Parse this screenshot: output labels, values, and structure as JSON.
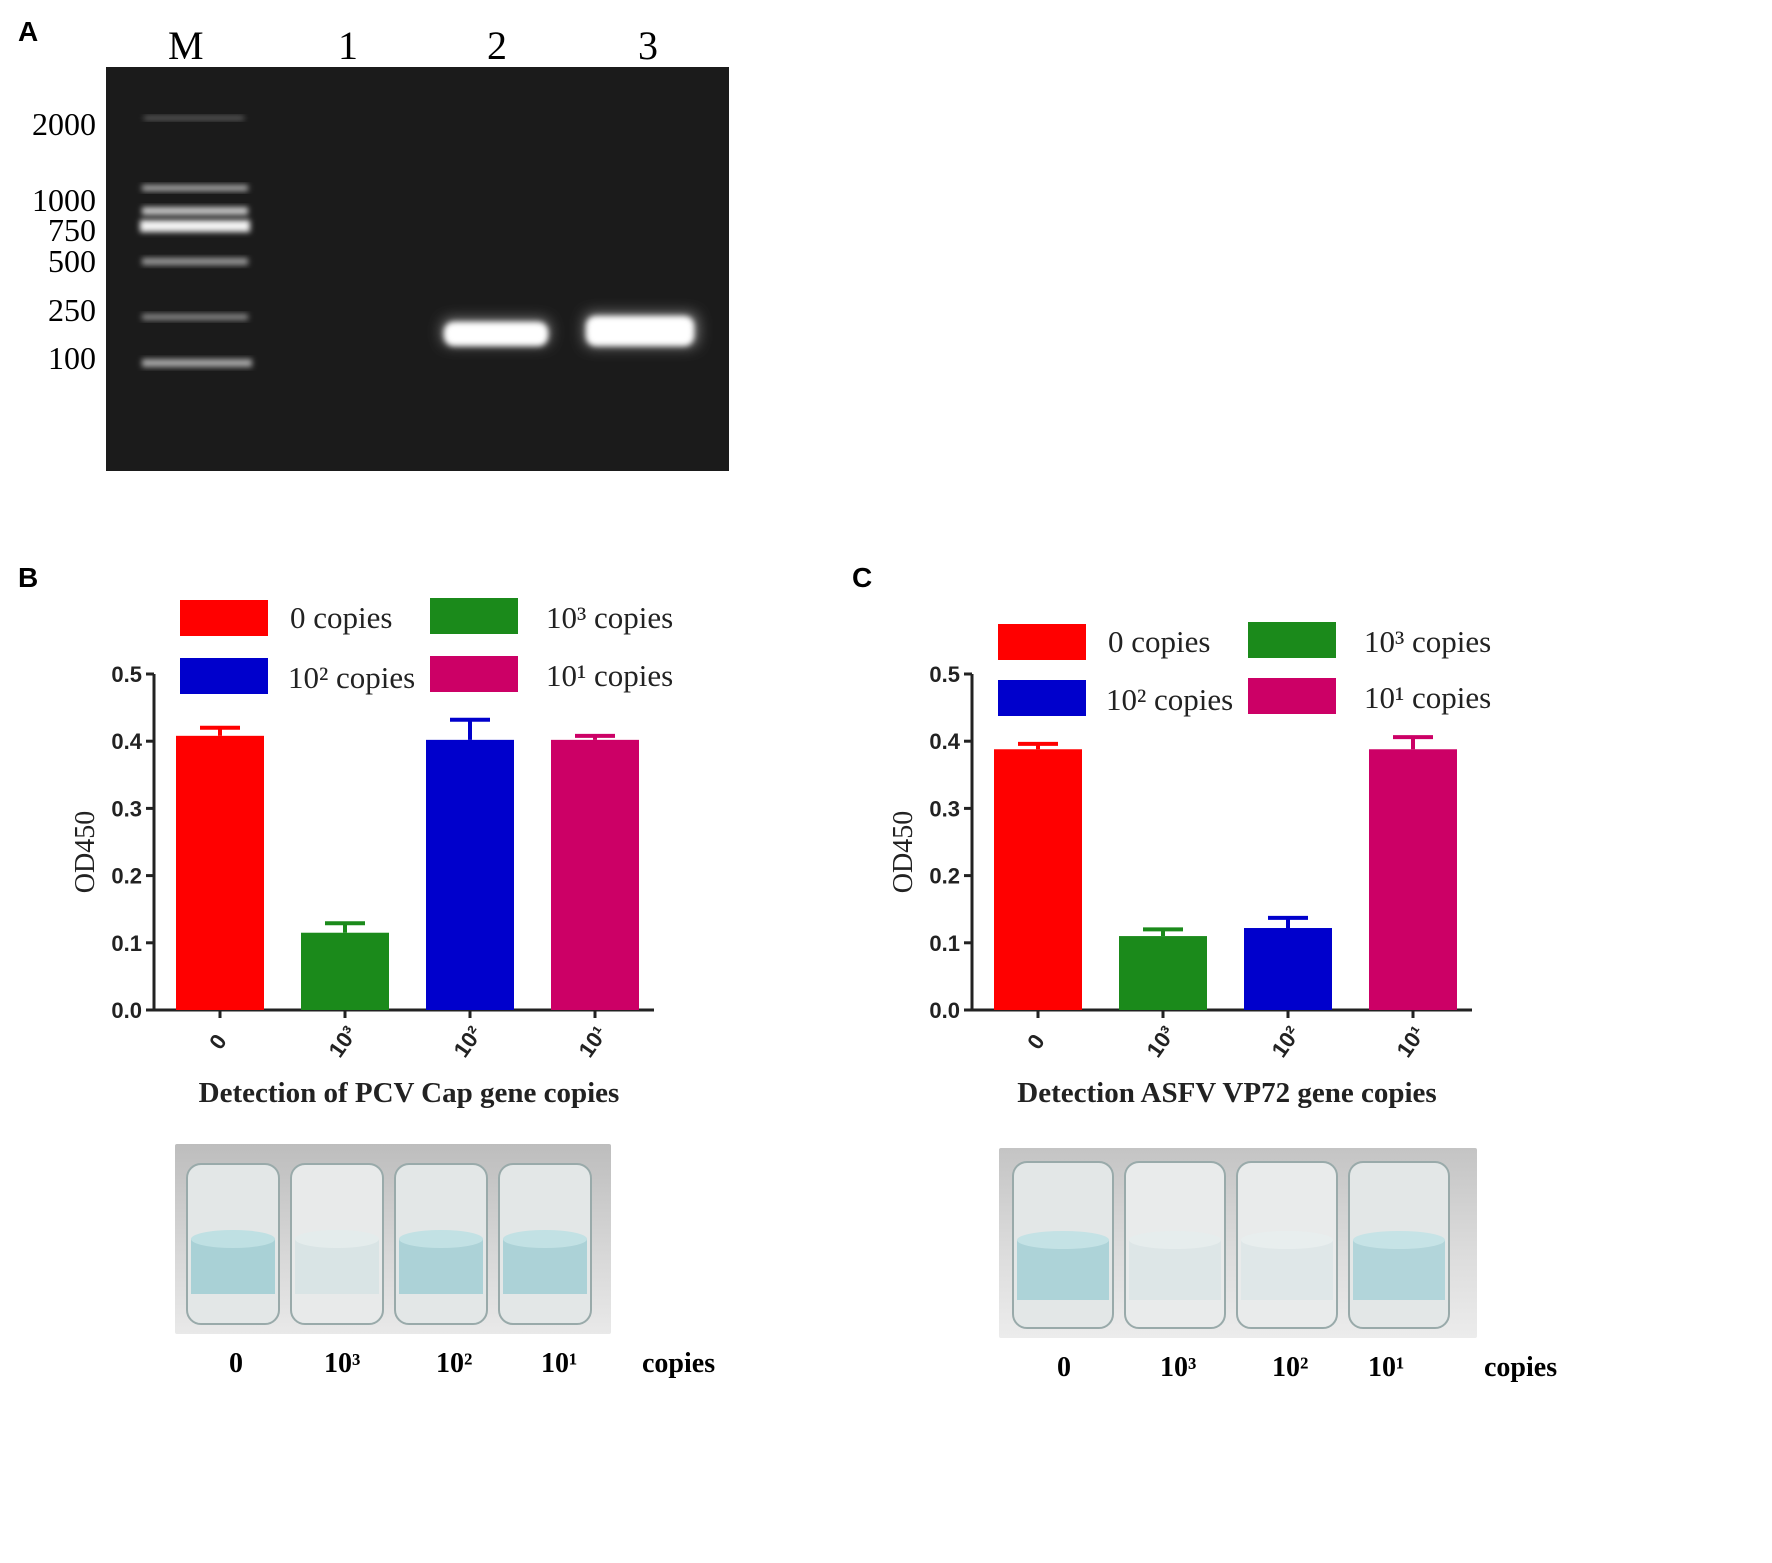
{
  "panel_a": {
    "letter": "A",
    "lanes": [
      "M",
      "1",
      "2",
      "3"
    ],
    "marker_sizes": [
      "2000",
      "1000",
      "750",
      "500",
      "250",
      "100"
    ],
    "colors": {
      "gel_bg": "#1b1b1b",
      "band": "#ffffff"
    }
  },
  "panel_b": {
    "letter": "B",
    "caption_row": {
      "labels": [
        "0",
        "10³",
        "10²",
        "10¹"
      ],
      "unit": "copies"
    }
  },
  "panel_c": {
    "letter": "C",
    "caption_row": {
      "labels": [
        "0",
        "10³",
        "10²",
        "10¹"
      ],
      "unit": "copies"
    }
  },
  "chart_data": [
    {
      "type": "bar",
      "title": "",
      "xlabel": "Detection of PCV Cap gene copies",
      "ylabel": "OD450",
      "ylim": [
        0,
        0.5
      ],
      "yticks": [
        "0.0",
        "0.1",
        "0.2",
        "0.3",
        "0.4",
        "0.5"
      ],
      "categories": [
        "0",
        "10³",
        "10²",
        "10¹"
      ],
      "values": [
        0.408,
        0.115,
        0.402,
        0.402
      ],
      "errors": [
        0.012,
        0.014,
        0.03,
        0.006
      ],
      "colors": [
        "#ff0000",
        "#1b8a1b",
        "#0000cc",
        "#cc0066"
      ],
      "legend": {
        "placement": "top",
        "entries": [
          {
            "label": "0 copies",
            "color": "#ff0000"
          },
          {
            "label": "10³ copies",
            "color": "#1b8a1b"
          },
          {
            "label": "10² copies",
            "color": "#0000cc"
          },
          {
            "label": "10¹ copies",
            "color": "#cc0066"
          }
        ]
      }
    },
    {
      "type": "bar",
      "title": "",
      "xlabel": "Detection ASFV VP72 gene copies",
      "ylabel": "OD450",
      "ylim": [
        0,
        0.5
      ],
      "yticks": [
        "0.0",
        "0.1",
        "0.2",
        "0.3",
        "0.4",
        "0.5"
      ],
      "categories": [
        "0",
        "10³",
        "10²",
        "10¹"
      ],
      "values": [
        0.388,
        0.11,
        0.122,
        0.388
      ],
      "errors": [
        0.008,
        0.01,
        0.015,
        0.018
      ],
      "colors": [
        "#ff0000",
        "#1b8a1b",
        "#0000cc",
        "#cc0066"
      ],
      "legend": {
        "placement": "top",
        "entries": [
          {
            "label": "0 copies",
            "color": "#ff0000"
          },
          {
            "label": "10³ copies",
            "color": "#1b8a1b"
          },
          {
            "label": "10² copies",
            "color": "#0000cc"
          },
          {
            "label": "10¹ copies",
            "color": "#cc0066"
          }
        ]
      }
    }
  ]
}
